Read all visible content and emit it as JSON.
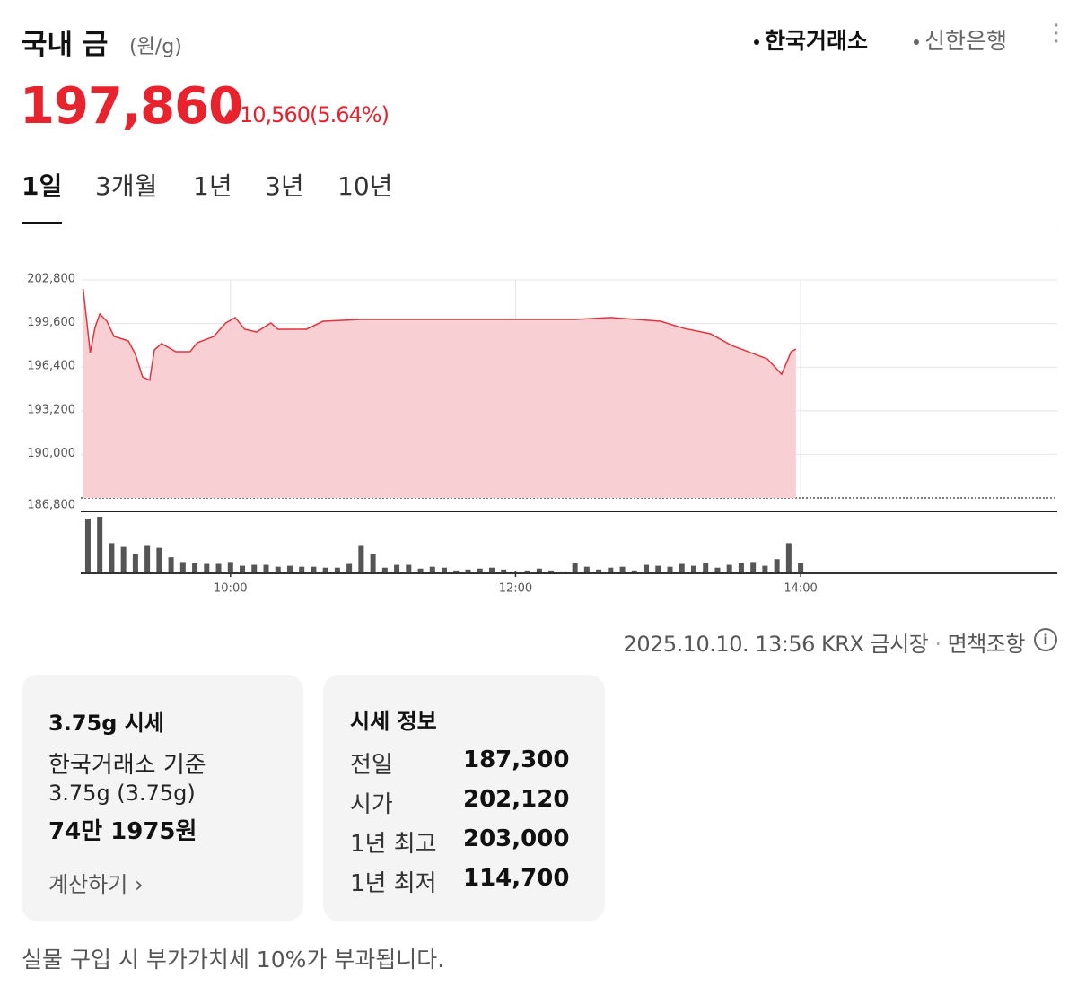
{
  "header": {
    "title": "국내 금",
    "unit": "(원/g)",
    "sources": [
      "한국거래소",
      "신한은행"
    ]
  },
  "price": {
    "current": "197,860",
    "change": "10,560",
    "rate": "(5.64%)"
  },
  "tabs": [
    "1일",
    "3개월",
    "1년",
    "3년",
    "10년"
  ],
  "chart_data": {
    "type": "area",
    "color": "#e5323b",
    "fill": "#f8cfd2",
    "grid": true,
    "x": [
      538,
      541,
      543,
      545,
      548,
      551,
      557,
      560,
      563,
      566,
      568,
      571,
      577,
      583,
      586,
      593,
      598,
      602,
      606,
      611,
      617,
      620,
      632,
      639,
      655,
      745,
      760,
      781,
      791,
      802,
      811,
      826,
      832,
      836,
      838
    ],
    "values": [
      202140,
      197470,
      199310,
      200300,
      199770,
      198650,
      198330,
      197340,
      195690,
      195430,
      197670,
      198130,
      197530,
      197530,
      198190,
      198650,
      199640,
      200040,
      199180,
      198980,
      199640,
      199180,
      199180,
      199770,
      199900,
      199900,
      200040,
      199770,
      199240,
      198850,
      197990,
      197000,
      195880,
      197530,
      197730
    ],
    "xlim": [
      537,
      948
    ],
    "ylim": [
      186800,
      202800
    ],
    "xticks": [
      {
        "value": 600,
        "label": "10:00"
      },
      {
        "value": 720,
        "label": "12:00"
      },
      {
        "value": 840,
        "label": "14:00"
      }
    ],
    "yticks": [
      {
        "value": 186800,
        "label": "186,800"
      },
      {
        "value": 190000,
        "label": "190,000"
      },
      {
        "value": 193200,
        "label": "193,200"
      },
      {
        "value": 196400,
        "label": "196,400"
      },
      {
        "value": 199600,
        "label": "199,600"
      },
      {
        "value": 202800,
        "label": "202,800"
      }
    ],
    "volume": {
      "color": "#555555",
      "x": [
        540,
        545,
        550,
        555,
        560,
        565,
        570,
        575,
        580,
        585,
        590,
        595,
        600,
        605,
        610,
        615,
        620,
        625,
        630,
        635,
        640,
        645,
        650,
        655,
        660,
        665,
        670,
        675,
        680,
        685,
        690,
        695,
        700,
        705,
        710,
        715,
        720,
        725,
        730,
        735,
        740,
        745,
        750,
        755,
        760,
        765,
        770,
        775,
        780,
        785,
        790,
        795,
        800,
        805,
        810,
        815,
        820,
        825,
        830,
        835,
        840
      ],
      "values": [
        58,
        60,
        32,
        28,
        20,
        30,
        27,
        17,
        12,
        11,
        10,
        10,
        12,
        8,
        9,
        9,
        7,
        8,
        7,
        7,
        6,
        6,
        10,
        30,
        20,
        6,
        9,
        9,
        5,
        7,
        6,
        3,
        4,
        5,
        6,
        4,
        2,
        3,
        5,
        3,
        2,
        11,
        7,
        4,
        6,
        7,
        3,
        9,
        8,
        7,
        10,
        8,
        11,
        6,
        9,
        11,
        12,
        8,
        15,
        32,
        11
      ]
    }
  },
  "timestamp": "2025.10.10. 13:56 KRX 금시장",
  "disclaimer": "면책조항",
  "card_weight": {
    "title": "3.75g 시세",
    "basis": "한국거래소 기준",
    "weight": "3.75g (3.75g)",
    "amount": "74만 1975원",
    "link": "계산하기"
  },
  "card_info": {
    "title": "시세 정보",
    "rows": [
      [
        "전일",
        "187,300"
      ],
      [
        "시가",
        "202,120"
      ],
      [
        "1년 최고",
        "203,000"
      ],
      [
        "1년 최저",
        "114,700"
      ]
    ]
  },
  "footnote": "실물 구입 시 부가가치세 10%가 부과됩니다."
}
